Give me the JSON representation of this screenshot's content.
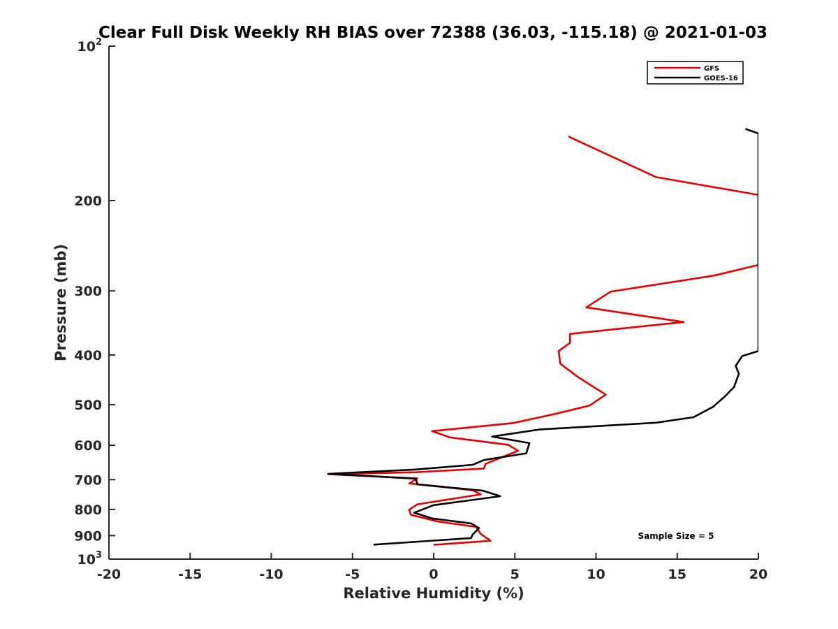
{
  "chart_data": {
    "type": "line",
    "title": "Clear Full Disk Weekly RH BIAS over 72388 (36.03, -115.18) @ 2021-01-03",
    "xlabel": "Relative Humidity (%)",
    "ylabel": "Pressure (mb)",
    "xlim": [
      -20,
      20
    ],
    "ylim": [
      100,
      1000
    ],
    "y_scale": "log",
    "y_reversed": true,
    "grid": false,
    "x_ticks": [
      {
        "value": -20,
        "label": "-20"
      },
      {
        "value": -15,
        "label": "-15"
      },
      {
        "value": -10,
        "label": "-10"
      },
      {
        "value": -5,
        "label": "-5"
      },
      {
        "value": 0,
        "label": "0"
      },
      {
        "value": 5,
        "label": "5"
      },
      {
        "value": 10,
        "label": "10"
      },
      {
        "value": 15,
        "label": "15"
      },
      {
        "value": 20,
        "label": "20"
      }
    ],
    "y_ticks": [
      {
        "value": 100,
        "label": "10",
        "sup": "2"
      },
      {
        "value": 200,
        "label": "200"
      },
      {
        "value": 300,
        "label": "300"
      },
      {
        "value": 400,
        "label": "400"
      },
      {
        "value": 500,
        "label": "500"
      },
      {
        "value": 600,
        "label": "600"
      },
      {
        "value": 700,
        "label": "700"
      },
      {
        "value": 800,
        "label": "800"
      },
      {
        "value": 900,
        "label": "900"
      },
      {
        "value": 1000,
        "label": "10",
        "sup": "3"
      }
    ],
    "legend_position": "top-right",
    "annotation": "Sample Size = 5",
    "series": [
      {
        "name": "GFS",
        "color": "#e00000",
        "points": [
          [
            8.3,
            150
          ],
          [
            13.7,
            180
          ],
          [
            20.0,
            195
          ],
          [
            20.0,
            267
          ],
          [
            17.3,
            280
          ],
          [
            10.9,
            301
          ],
          [
            9.4,
            323
          ],
          [
            15.4,
            345
          ],
          [
            8.4,
            364
          ],
          [
            8.4,
            379
          ],
          [
            7.7,
            393
          ],
          [
            7.8,
            416
          ],
          [
            8.9,
            442
          ],
          [
            10.0,
            465
          ],
          [
            10.6,
            478
          ],
          [
            9.6,
            502
          ],
          [
            7.5,
            521
          ],
          [
            4.9,
            543
          ],
          [
            -0.1,
            563
          ],
          [
            1.0,
            579
          ],
          [
            4.6,
            599
          ],
          [
            5.2,
            615
          ],
          [
            3.2,
            652
          ],
          [
            3.1,
            666
          ],
          [
            -1.1,
            677
          ],
          [
            -6.5,
            683
          ],
          [
            -1.0,
            696
          ],
          [
            -1.5,
            712
          ],
          [
            2.4,
            734
          ],
          [
            2.9,
            748
          ],
          [
            -1.0,
            782
          ],
          [
            -1.5,
            801
          ],
          [
            -1.4,
            820
          ],
          [
            0.3,
            845
          ],
          [
            2.6,
            865
          ],
          [
            2.9,
            893
          ],
          [
            3.5,
            921
          ],
          [
            0.0,
            938
          ]
        ]
      },
      {
        "name": "GOES-16",
        "color": "#000000",
        "points": [
          [
            19.2,
            145
          ],
          [
            20.0,
            148
          ],
          [
            20.0,
            393
          ],
          [
            19.0,
            402
          ],
          [
            18.6,
            420
          ],
          [
            18.8,
            435
          ],
          [
            18.5,
            462
          ],
          [
            17.9,
            483
          ],
          [
            17.2,
            505
          ],
          [
            16.0,
            529
          ],
          [
            13.7,
            542
          ],
          [
            6.5,
            559
          ],
          [
            3.6,
            577
          ],
          [
            5.9,
            594
          ],
          [
            5.7,
            622
          ],
          [
            3.1,
            641
          ],
          [
            2.4,
            655
          ],
          [
            -1.2,
            669
          ],
          [
            -6.5,
            682
          ],
          [
            -1.1,
            697
          ],
          [
            -1.0,
            715
          ],
          [
            3.0,
            735
          ],
          [
            4.1,
            754
          ],
          [
            0.0,
            785
          ],
          [
            -1.2,
            812
          ],
          [
            -0.1,
            833
          ],
          [
            2.3,
            852
          ],
          [
            2.8,
            870
          ],
          [
            2.4,
            896
          ],
          [
            2.3,
            910
          ],
          [
            -3.7,
            937
          ]
        ]
      }
    ]
  }
}
